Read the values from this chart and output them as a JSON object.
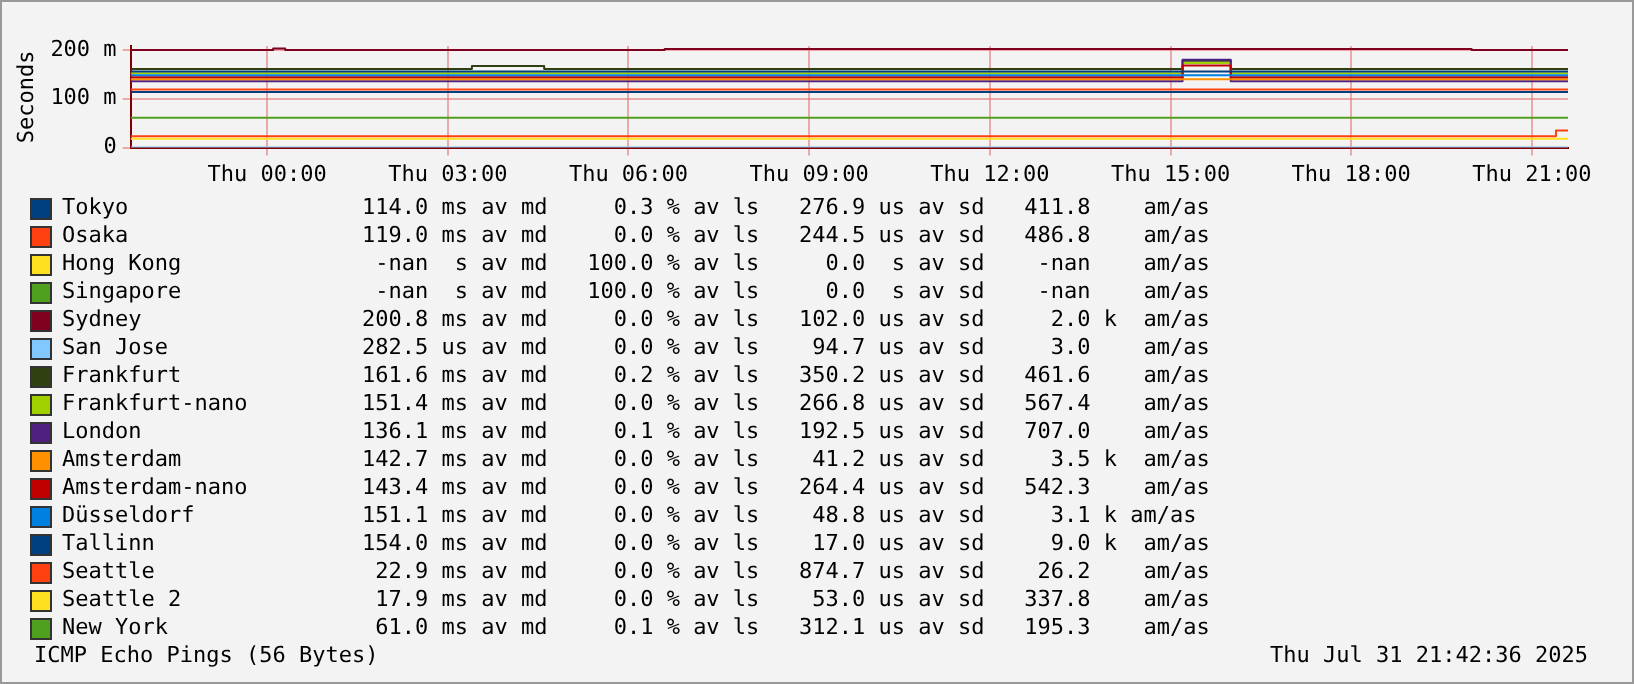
{
  "chart_data": {
    "type": "line",
    "ylabel": "Seconds",
    "xlim": [
      "2025-07-30T21:44",
      "2025-07-31T21:36"
    ],
    "xticks": [
      {
        "value": "2025-07-31T00:00",
        "label": "Thu 00:00"
      },
      {
        "value": "2025-07-31T03:00",
        "label": "Thu 03:00"
      },
      {
        "value": "2025-07-31T06:00",
        "label": "Thu 06:00"
      },
      {
        "value": "2025-07-31T09:00",
        "label": "Thu 09:00"
      },
      {
        "value": "2025-07-31T12:00",
        "label": "Thu 12:00"
      },
      {
        "value": "2025-07-31T15:00",
        "label": "Thu 15:00"
      },
      {
        "value": "2025-07-31T18:00",
        "label": "Thu 18:00"
      },
      {
        "value": "2025-07-31T21:00",
        "label": "Thu 21:00"
      }
    ],
    "ylim": [
      0,
      208
    ],
    "yticks": [
      0,
      {
        "value": 100,
        "label": "100 m"
      },
      {
        "value": 200,
        "label": "200 m"
      }
    ],
    "grid": true,
    "legend": "bottom",
    "marker": "none",
    "line_style": "solid",
    "series": [
      {
        "name": "Tokyo",
        "color": "#004080",
        "x": [
          "2025-07-30T21:44",
          "2025-07-31T21:36"
        ],
        "values": [
          114,
          114
        ]
      },
      {
        "name": "Osaka",
        "color": "#ff4010",
        "x": [
          "2025-07-30T21:44",
          "2025-07-31T21:36"
        ],
        "values": [
          119,
          119
        ]
      },
      {
        "name": "Hong Kong",
        "color": "#ffe020"
      },
      {
        "name": "Singapore",
        "color": "#50a020"
      },
      {
        "name": "Sydney",
        "color": "#800020",
        "x": [
          "2025-07-30T21:44",
          "2025-07-31T00:06",
          "2025-07-31T00:06",
          "2025-07-31T00:18",
          "2025-07-31T00:18",
          "2025-07-31T06:36",
          "2025-07-31T06:36",
          "2025-07-31T20:00",
          "2025-07-31T20:00",
          "2025-07-31T21:36"
        ],
        "values": [
          200,
          200,
          203,
          203,
          200,
          200,
          202,
          202,
          200,
          200
        ]
      },
      {
        "name": "San Jose",
        "color": "#80c8ff",
        "x": [
          "2025-07-30T21:44",
          "2025-07-31T21:36"
        ],
        "values": [
          0.3,
          0.3
        ]
      },
      {
        "name": "Frankfurt",
        "color": "#304010",
        "x": [
          "2025-07-30T21:44",
          "2025-07-31T03:24",
          "2025-07-31T03:24",
          "2025-07-31T04:36",
          "2025-07-31T04:36",
          "2025-07-31T15:12",
          "2025-07-31T15:12",
          "2025-07-31T16:00",
          "2025-07-31T16:00",
          "2025-07-31T21:36"
        ],
        "values": [
          161,
          161,
          167,
          167,
          161,
          161,
          178,
          178,
          161,
          161
        ]
      },
      {
        "name": "Frankfurt-nano",
        "color": "#a0d000",
        "x": [
          "2025-07-30T21:44",
          "2025-07-31T15:12",
          "2025-07-31T15:12",
          "2025-07-31T16:00",
          "2025-07-31T16:00",
          "2025-07-31T21:36"
        ],
        "values": [
          152,
          152,
          173,
          173,
          152,
          152
        ]
      },
      {
        "name": "London",
        "color": "#502080",
        "x": [
          "2025-07-30T21:44",
          "2025-07-31T15:12",
          "2025-07-31T15:12",
          "2025-07-31T16:00",
          "2025-07-31T16:00",
          "2025-07-31T21:36"
        ],
        "values": [
          136,
          136,
          180,
          180,
          136,
          136
        ]
      },
      {
        "name": "Amsterdam",
        "color": "#ff9000",
        "x": [
          "2025-07-30T21:44",
          "2025-07-31T21:36"
        ],
        "values": [
          140,
          140
        ]
      },
      {
        "name": "Amsterdam-nano",
        "color": "#c00000",
        "x": [
          "2025-07-30T21:44",
          "2025-07-31T15:12",
          "2025-07-31T15:12",
          "2025-07-31T16:00",
          "2025-07-31T16:00",
          "2025-07-31T21:36"
        ],
        "values": [
          144,
          144,
          168,
          168,
          144,
          144
        ]
      },
      {
        "name": "Düsseldorf",
        "color": "#0080e0",
        "x": [
          "2025-07-30T21:44",
          "2025-07-31T21:36"
        ],
        "values": [
          148,
          148
        ]
      },
      {
        "name": "Tallinn",
        "color": "#004080",
        "x": [
          "2025-07-30T21:44",
          "2025-07-31T21:36"
        ],
        "values": [
          156,
          156
        ]
      },
      {
        "name": "Seattle",
        "color": "#ff4010",
        "x": [
          "2025-07-30T21:44",
          "2025-07-31T21:24",
          "2025-07-31T21:24",
          "2025-07-31T21:36"
        ],
        "values": [
          23,
          23,
          35,
          35
        ]
      },
      {
        "name": "Seattle 2",
        "color": "#ffe020",
        "x": [
          "2025-07-30T21:44",
          "2025-07-31T21:36"
        ],
        "values": [
          18,
          18
        ]
      },
      {
        "name": "New York",
        "color": "#50a020",
        "x": [
          "2025-07-30T21:44",
          "2025-07-31T21:36"
        ],
        "values": [
          61,
          61
        ]
      }
    ],
    "annotations": [
      "114.0 ms av md     0.3 % av ls   276.9 us av sd   411.8    am/as",
      "119.0 ms av md     0.0 % av ls   244.5 us av sd   486.8    am/as",
      " -nan  s av md   100.0 % av ls     0.0  s av sd    -nan    am/as",
      " -nan  s av md   100.0 % av ls     0.0  s av sd    -nan    am/as",
      "200.8 ms av md     0.0 % av ls   102.0 us av sd     2.0 k  am/as",
      "282.5 us av md     0.0 % av ls    94.7 us av sd     3.0    am/as",
      "161.6 ms av md     0.2 % av ls   350.2 us av sd   461.6    am/as",
      "151.4 ms av md     0.0 % av ls   266.8 us av sd   567.4    am/as",
      "136.1 ms av md     0.1 % av ls   192.5 us av sd   707.0    am/as",
      "142.7 ms av md     0.0 % av ls    41.2 us av sd     3.5 k  am/as",
      "143.4 ms av md     0.0 % av ls   264.4 us av sd   542.3    am/as",
      "151.1 ms av md     0.0 % av ls    48.8 us av sd     3.1 k am/as",
      "154.0 ms av md     0.0 % av ls    17.0 us av sd     9.0 k  am/as",
      " 22.9 ms av md     0.0 % av ls   874.7 us av sd    26.2    am/as",
      " 17.9 ms av md     0.0 % av ls    53.0 us av sd   337.8    am/as",
      " 61.0 ms av md     0.1 % av ls   312.1 us av sd   195.3    am/as",
      "ICMP Echo Pings (56 Bytes)",
      "Thu Jul 31 21:42:36 2025"
    ]
  }
}
